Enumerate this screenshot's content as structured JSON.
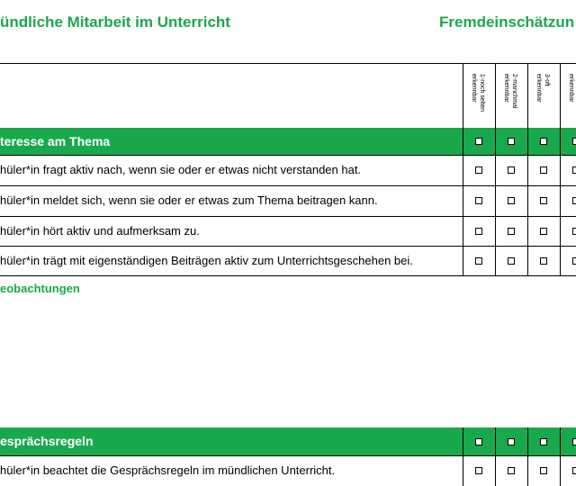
{
  "header": {
    "title": "ündliche Mitarbeit im Unterricht",
    "right": "Fremdeinschätzun"
  },
  "table": {
    "columns": [
      "1-noch selten\nerkennbar",
      "2-manchmal\nerkennbar",
      "3-oft\nerkennbar",
      "erkennbar"
    ],
    "sections": [
      {
        "title": "teresse am Thema",
        "rows": [
          "hüler*in fragt aktiv nach, wenn sie oder er etwas nicht verstanden hat.",
          "hüler*in meldet sich, wenn sie oder er etwas zum Thema beitragen kann.",
          "hüler*in hört aktiv und aufmerksam zu.",
          "hüler*in trägt mit eigenständigen Beiträgen aktiv zum Unterrichtsgeschehen bei."
        ],
        "note": "eobachtungen"
      },
      {
        "title": "esprächsregeln",
        "rows": [
          "hüler*in beachtet die Gesprächsregeln im mündlichen Unterricht."
        ]
      }
    ]
  }
}
